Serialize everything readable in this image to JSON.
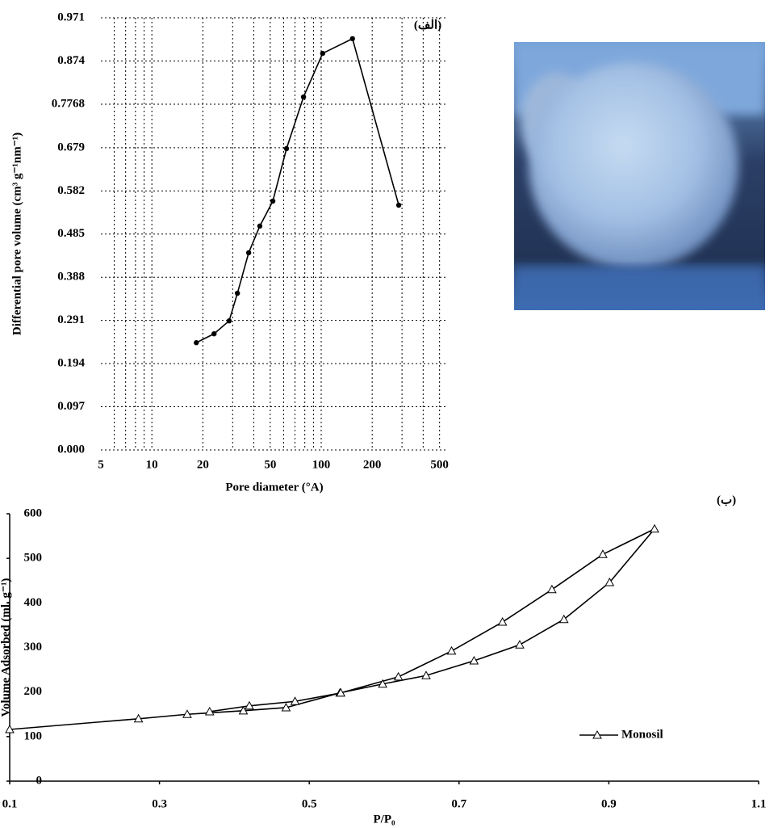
{
  "chart_data": [
    {
      "type": "line",
      "title": "(الف)",
      "xlabel": "Pore diameter (°A)",
      "ylabel": "Differential pore volume (cm³ g⁻¹nm⁻¹)",
      "xscale": "log",
      "grid": true,
      "marker": "circle",
      "color": "#000000",
      "x": [
        18.3,
        23.3,
        28.6,
        32.0,
        37.3,
        43.4,
        51.8,
        62.4,
        78.6,
        102,
        153,
        287
      ],
      "values": [
        0.241,
        0.261,
        0.29,
        0.352,
        0.443,
        0.503,
        0.559,
        0.677,
        0.793,
        0.891,
        0.924,
        0.55
      ],
      "xlim": [
        5,
        560
      ],
      "xticks": [
        5,
        10,
        20,
        50,
        100,
        200,
        500
      ],
      "ylim": [
        0,
        0.971
      ],
      "yticks": [
        {
          "value": 0,
          "label": "0.000"
        },
        0.097,
        0.194,
        0.291,
        0.388,
        0.485,
        0.582,
        0.679,
        0.7768,
        0.874,
        0.971
      ]
    },
    {
      "type": "line",
      "title": "(ب)",
      "xlabel": "P/P₀",
      "ylabel": "Volume Adsorbed (ml. g⁻¹)",
      "marker": "triangle",
      "legend": "lower right",
      "grid": false,
      "series": [
        {
          "name": "Monosil",
          "color": "#000000",
          "x": [
            0.1,
            0.272,
            0.337,
            0.412,
            0.469,
            0.541,
            0.598,
            0.656,
            0.72,
            0.781,
            0.84,
            0.901,
            0.961,
            0.892,
            0.824,
            0.758,
            0.69,
            0.619,
            0.542,
            0.481,
            0.42,
            0.367
          ],
          "values": [
            116,
            140,
            150,
            158,
            165,
            198,
            218,
            237,
            270,
            306,
            363,
            446,
            566,
            509,
            430,
            357,
            292,
            234,
            198,
            179,
            169,
            156
          ]
        }
      ],
      "xlim": [
        0.1,
        1.1
      ],
      "xticks": [
        0.1,
        0.3,
        0.5,
        0.7,
        0.9,
        1.1
      ],
      "ylim": [
        0,
        600
      ],
      "yticks": [
        0,
        100,
        200,
        300,
        400,
        500,
        600
      ]
    }
  ]
}
